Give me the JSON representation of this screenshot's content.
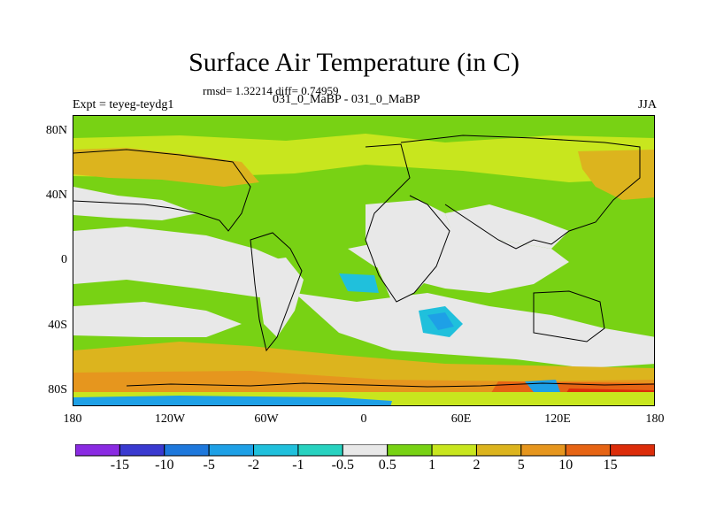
{
  "title": "Surface Air Temperature (in C)",
  "stats": "rmsd= 1.32214 diff= 0.74959",
  "experiment": "Expt = teyeg-teydg1",
  "case": "031_0_MaBP - 031_0_MaBP",
  "season": "JJA",
  "y_axis": [
    "80N",
    "40N",
    "0",
    "40S",
    "80S"
  ],
  "x_axis": [
    "180",
    "120W",
    "60W",
    "0",
    "60E",
    "120E",
    "180"
  ],
  "colorbar": {
    "labels": [
      "-15",
      "-10",
      "-5",
      "-2",
      "-1",
      "-0.5",
      "0.5",
      "1",
      "2",
      "5",
      "10",
      "15"
    ],
    "colors": [
      "#8a2be2",
      "#3a3ad0",
      "#1e78dc",
      "#1ea0e6",
      "#20c0dc",
      "#28d2c0",
      "#e8e8e8",
      "#78d214",
      "#c8e61e",
      "#dcb41e",
      "#e6961e",
      "#e66414",
      "#dc2d0a"
    ]
  },
  "map_colors": {
    "neutral": "#e8e8e8",
    "green": "#78d214",
    "yellow_green": "#c8e61e",
    "orange": "#dcb41e",
    "dark_orange": "#e6961e",
    "red_orange": "#e66414",
    "cyan": "#20c0dc",
    "blue": "#1ea0e6"
  }
}
